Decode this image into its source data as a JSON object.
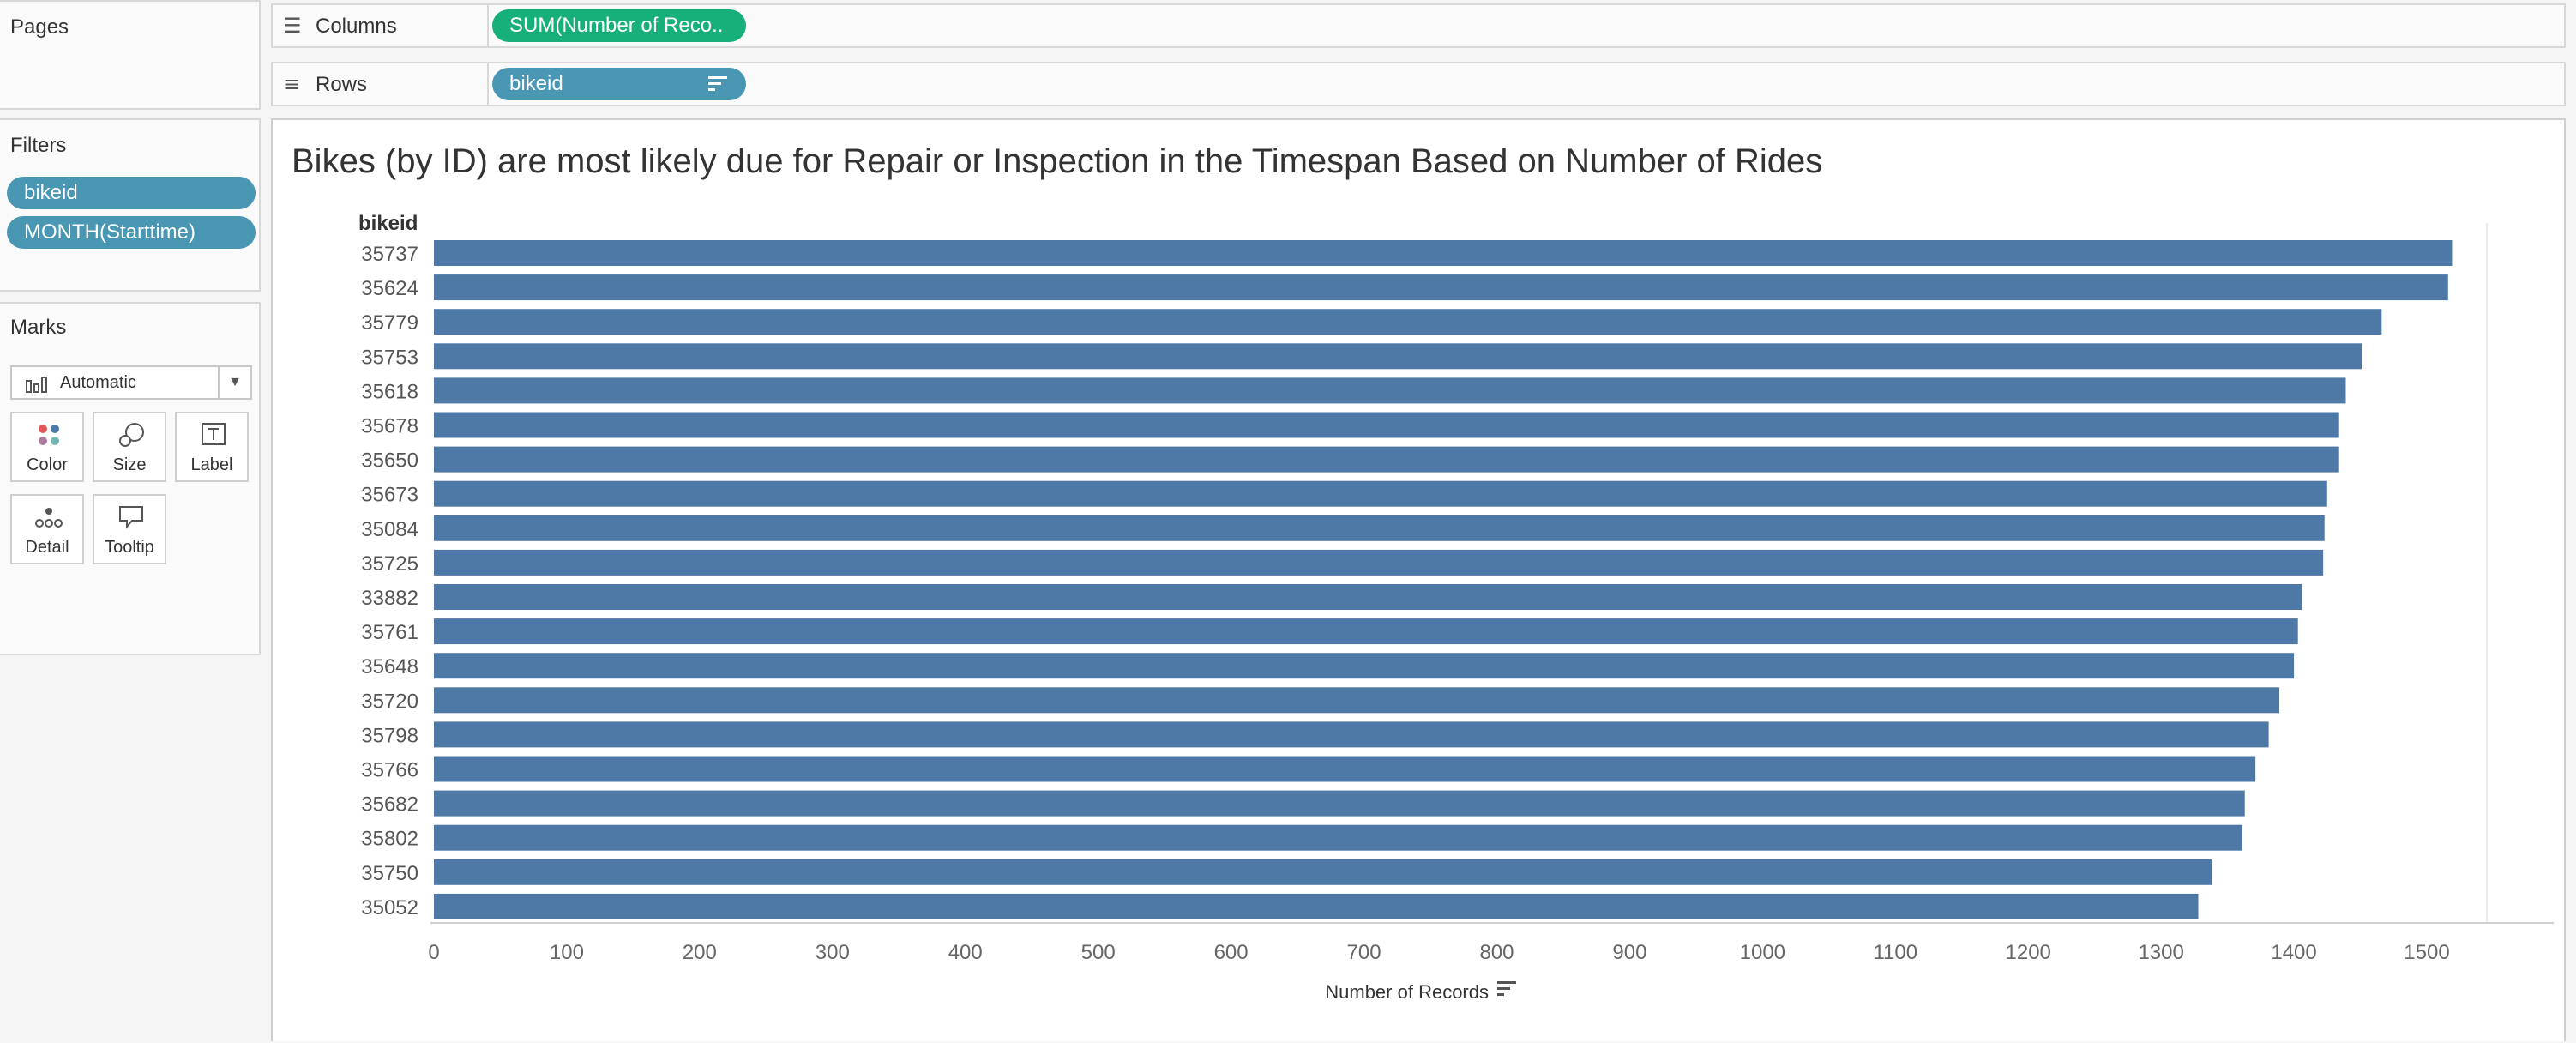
{
  "pages": {
    "title": "Pages"
  },
  "columns_shelf": {
    "label": "Columns",
    "pill": "SUM(Number of Reco.."
  },
  "rows_shelf": {
    "label": "Rows",
    "pill": "bikeid"
  },
  "filters": {
    "title": "Filters",
    "items": [
      "bikeid",
      "MONTH(Starttime)"
    ]
  },
  "marks": {
    "title": "Marks",
    "type_selected": "Automatic",
    "buttons": {
      "color": "Color",
      "size": "Size",
      "label": "Label",
      "detail": "Detail",
      "tooltip": "Tooltip"
    }
  },
  "colors": {
    "bar": "#4e79a7",
    "pill_blue": "#4a97b3",
    "pill_green": "#17b07a"
  },
  "chart_data": {
    "type": "bar",
    "orientation": "horizontal",
    "title": "Bikes (by ID) are most likely due for Repair or Inspection in the Timespan Based on Number of Rides",
    "category_header": "bikeid",
    "xlabel": "Number of Records",
    "categories": [
      "35737",
      "35624",
      "35779",
      "35753",
      "35618",
      "35678",
      "35650",
      "35673",
      "35084",
      "35725",
      "33882",
      "35761",
      "35648",
      "35720",
      "35798",
      "35766",
      "35682",
      "35802",
      "35750",
      "35052"
    ],
    "values": [
      1519,
      1516,
      1466,
      1451,
      1439,
      1434,
      1434,
      1425,
      1423,
      1422,
      1406,
      1403,
      1400,
      1389,
      1381,
      1371,
      1363,
      1361,
      1338,
      1328
    ],
    "xlim": [
      0,
      1580
    ],
    "xticks": [
      0,
      100,
      200,
      300,
      400,
      500,
      600,
      700,
      800,
      900,
      1000,
      1100,
      1200,
      1300,
      1400,
      1500
    ]
  }
}
